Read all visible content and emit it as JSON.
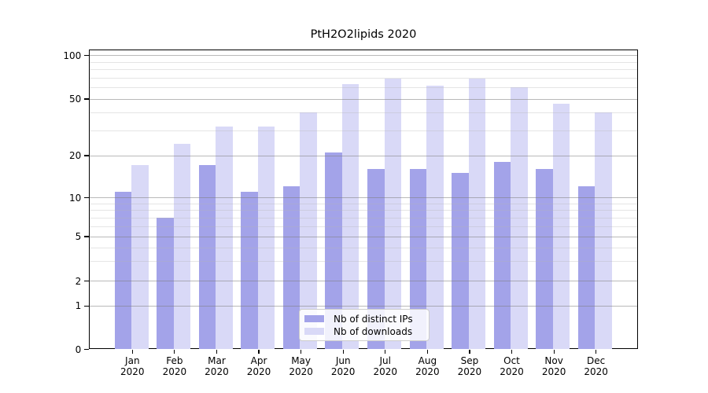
{
  "title": "PtH2O2lipids 2020",
  "legend": {
    "items": [
      {
        "label": "Nb of distinct IPs",
        "color": "#a3a3e9"
      },
      {
        "label": "Nb of downloads",
        "color": "#d9d9f7"
      }
    ]
  },
  "y_axis": {
    "tick_labels": [
      "100",
      "50",
      "20",
      "10",
      "5",
      "2",
      "1",
      "0"
    ],
    "tick_values": [
      100,
      50,
      20,
      10,
      5,
      2,
      1,
      0
    ]
  },
  "x_axis": {
    "months": [
      "Jan",
      "Feb",
      "Mar",
      "Apr",
      "May",
      "Jun",
      "Jul",
      "Aug",
      "Sep",
      "Oct",
      "Nov",
      "Dec"
    ],
    "year": "2020"
  },
  "colors": {
    "distinct_ips": "#a3a3e9",
    "downloads": "#d9d9f7",
    "major_grid": "#b4b4b4",
    "minor_grid": "#e7e7e7",
    "axis": "#000000",
    "legend_border": "#cccccc"
  },
  "chart_data": {
    "type": "bar",
    "title": "PtH2O2lipids 2020",
    "categories": [
      "Jan 2020",
      "Feb 2020",
      "Mar 2020",
      "Apr 2020",
      "May 2020",
      "Jun 2020",
      "Jul 2020",
      "Aug 2020",
      "Sep 2020",
      "Oct 2020",
      "Nov 2020",
      "Dec 2020"
    ],
    "series": [
      {
        "name": "Nb of distinct IPs",
        "color": "#a3a3e9",
        "values": [
          11,
          7,
          17,
          11,
          12,
          21,
          16,
          16,
          15,
          18,
          16,
          12
        ]
      },
      {
        "name": "Nb of downloads",
        "color": "#d9d9f7",
        "values": [
          17,
          24,
          32,
          32,
          40,
          63,
          69,
          62,
          69,
          60,
          46,
          40
        ]
      }
    ],
    "xlabel": "",
    "ylabel": "",
    "yscale": "symlog",
    "ylim": [
      0,
      110
    ],
    "y_major_ticks": [
      0,
      1,
      2,
      5,
      10,
      20,
      50,
      100
    ],
    "y_minor_ticks": [
      3,
      4,
      6,
      7,
      8,
      9,
      30,
      40,
      60,
      70,
      80,
      90
    ],
    "grid": true,
    "legend_position": "lower center"
  }
}
